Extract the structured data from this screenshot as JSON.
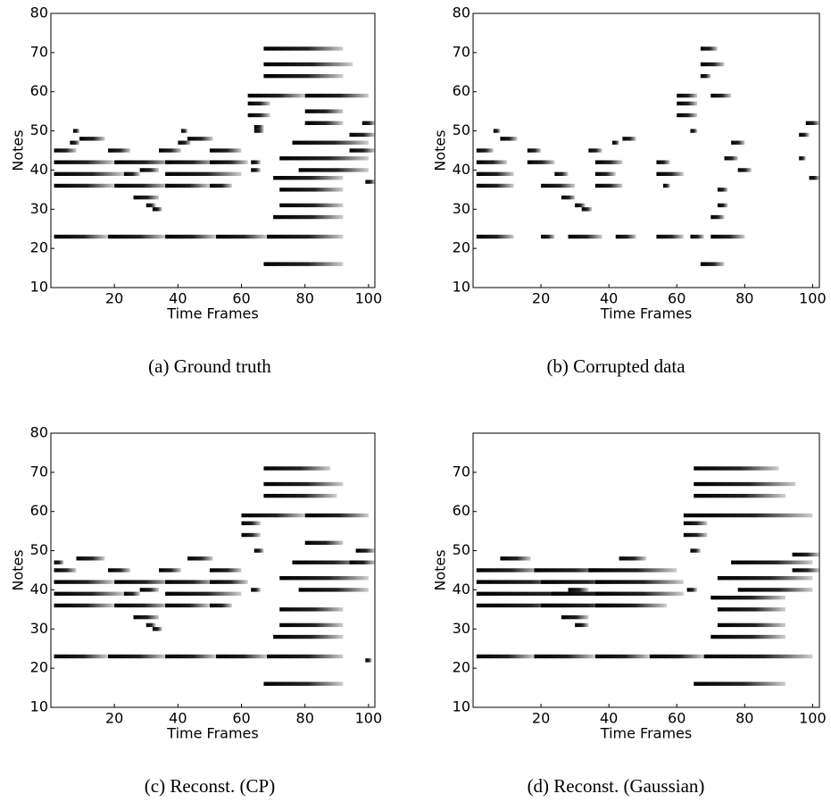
{
  "chart_data": [
    {
      "type": "heatmap",
      "caption": "(a) Ground truth",
      "x_label": "Time Frames",
      "y_label": "Notes",
      "xlim": [
        0,
        102
      ],
      "ylim": [
        10,
        80
      ],
      "xticks": [
        20,
        40,
        60,
        80,
        100
      ],
      "yticks": [
        10,
        20,
        30,
        40,
        50,
        60,
        70,
        80
      ],
      "segments": [
        [
          23,
          1,
          18
        ],
        [
          23,
          18,
          36
        ],
        [
          23,
          36,
          52
        ],
        [
          23,
          52,
          68
        ],
        [
          23,
          68,
          92
        ],
        [
          45,
          1,
          8
        ],
        [
          42,
          1,
          20
        ],
        [
          39,
          1,
          23
        ],
        [
          36,
          1,
          20
        ],
        [
          47,
          6,
          9
        ],
        [
          50,
          7,
          9
        ],
        [
          48,
          9,
          17
        ],
        [
          45,
          18,
          25
        ],
        [
          42,
          20,
          38
        ],
        [
          39,
          23,
          28
        ],
        [
          36,
          20,
          37
        ],
        [
          40,
          28,
          34
        ],
        [
          33,
          26,
          34
        ],
        [
          31,
          30,
          33
        ],
        [
          30,
          32,
          35
        ],
        [
          45,
          34,
          41
        ],
        [
          42,
          36,
          52
        ],
        [
          39,
          36,
          60
        ],
        [
          36,
          36,
          50
        ],
        [
          47,
          40,
          44
        ],
        [
          50,
          41,
          43
        ],
        [
          48,
          43,
          51
        ],
        [
          45,
          50,
          60
        ],
        [
          42,
          50,
          62
        ],
        [
          36,
          50,
          57
        ],
        [
          40,
          63,
          66
        ],
        [
          42,
          63,
          66
        ],
        [
          59,
          62,
          80
        ],
        [
          57,
          62,
          69
        ],
        [
          54,
          62,
          69
        ],
        [
          51,
          64,
          67
        ],
        [
          50,
          64,
          67
        ],
        [
          71,
          67,
          92
        ],
        [
          67,
          67,
          95
        ],
        [
          64,
          67,
          92
        ],
        [
          59,
          80,
          100
        ],
        [
          55,
          80,
          92
        ],
        [
          52,
          80,
          92
        ],
        [
          47,
          76,
          100
        ],
        [
          43,
          72,
          100
        ],
        [
          40,
          78,
          100
        ],
        [
          38,
          70,
          92
        ],
        [
          35,
          72,
          92
        ],
        [
          31,
          72,
          92
        ],
        [
          28,
          70,
          92
        ],
        [
          16,
          67,
          92
        ],
        [
          49,
          94,
          102
        ],
        [
          52,
          98,
          102
        ],
        [
          45,
          94,
          102
        ],
        [
          37,
          99,
          102
        ]
      ]
    },
    {
      "type": "heatmap",
      "caption": "(b) Corrupted data",
      "x_label": "Time Frames",
      "y_label": "Notes",
      "xlim": [
        0,
        102
      ],
      "ylim": [
        10,
        80
      ],
      "xticks": [
        20,
        40,
        60,
        80,
        100
      ],
      "yticks": [
        10,
        20,
        30,
        40,
        50,
        60,
        70,
        80
      ],
      "segments": [
        [
          23,
          1,
          12
        ],
        [
          23,
          20,
          24
        ],
        [
          23,
          28,
          38
        ],
        [
          23,
          42,
          48
        ],
        [
          23,
          54,
          62
        ],
        [
          23,
          64,
          68
        ],
        [
          23,
          70,
          80
        ],
        [
          45,
          1,
          6
        ],
        [
          42,
          1,
          10
        ],
        [
          39,
          1,
          12
        ],
        [
          36,
          1,
          12
        ],
        [
          48,
          8,
          13
        ],
        [
          50,
          6,
          8
        ],
        [
          45,
          16,
          20
        ],
        [
          42,
          16,
          24
        ],
        [
          39,
          24,
          28
        ],
        [
          36,
          20,
          30
        ],
        [
          33,
          26,
          30
        ],
        [
          31,
          30,
          33
        ],
        [
          30,
          32,
          35
        ],
        [
          45,
          34,
          38
        ],
        [
          42,
          36,
          44
        ],
        [
          39,
          36,
          42
        ],
        [
          36,
          36,
          44
        ],
        [
          47,
          41,
          43
        ],
        [
          48,
          44,
          48
        ],
        [
          42,
          54,
          58
        ],
        [
          39,
          54,
          62
        ],
        [
          36,
          56,
          58
        ],
        [
          59,
          60,
          66
        ],
        [
          57,
          60,
          66
        ],
        [
          54,
          60,
          66
        ],
        [
          50,
          64,
          66
        ],
        [
          71,
          67,
          72
        ],
        [
          67,
          67,
          74
        ],
        [
          64,
          67,
          70
        ],
        [
          59,
          70,
          76
        ],
        [
          47,
          76,
          80
        ],
        [
          43,
          74,
          78
        ],
        [
          40,
          78,
          82
        ],
        [
          35,
          72,
          75
        ],
        [
          31,
          72,
          75
        ],
        [
          28,
          70,
          74
        ],
        [
          16,
          67,
          74
        ],
        [
          49,
          96,
          99
        ],
        [
          52,
          98,
          102
        ],
        [
          43,
          96,
          98
        ],
        [
          38,
          99,
          102
        ]
      ]
    },
    {
      "type": "heatmap",
      "caption": "(c) Reconst. (CP)",
      "x_label": "Time Frames",
      "y_label": "Notes",
      "xlim": [
        0,
        102
      ],
      "ylim": [
        10,
        80
      ],
      "xticks": [
        20,
        40,
        60,
        80,
        100
      ],
      "yticks": [
        10,
        20,
        30,
        40,
        50,
        60,
        70,
        80
      ],
      "segments": [
        [
          23,
          1,
          18
        ],
        [
          23,
          18,
          36
        ],
        [
          23,
          36,
          52
        ],
        [
          23,
          52,
          68
        ],
        [
          23,
          68,
          92
        ],
        [
          47,
          1,
          4
        ],
        [
          45,
          1,
          8
        ],
        [
          42,
          1,
          20
        ],
        [
          39,
          1,
          23
        ],
        [
          36,
          1,
          20
        ],
        [
          48,
          8,
          17
        ],
        [
          45,
          18,
          25
        ],
        [
          42,
          20,
          38
        ],
        [
          39,
          23,
          28
        ],
        [
          36,
          20,
          37
        ],
        [
          40,
          28,
          34
        ],
        [
          33,
          26,
          34
        ],
        [
          31,
          30,
          33
        ],
        [
          30,
          32,
          35
        ],
        [
          45,
          34,
          41
        ],
        [
          42,
          36,
          52
        ],
        [
          39,
          36,
          60
        ],
        [
          36,
          36,
          50
        ],
        [
          48,
          43,
          51
        ],
        [
          45,
          50,
          60
        ],
        [
          42,
          50,
          62
        ],
        [
          36,
          50,
          57
        ],
        [
          40,
          63,
          66
        ],
        [
          59,
          60,
          80
        ],
        [
          57,
          60,
          66
        ],
        [
          54,
          60,
          66
        ],
        [
          50,
          64,
          67
        ],
        [
          71,
          67,
          88
        ],
        [
          67,
          67,
          92
        ],
        [
          64,
          67,
          90
        ],
        [
          59,
          80,
          100
        ],
        [
          52,
          80,
          92
        ],
        [
          47,
          76,
          100
        ],
        [
          43,
          72,
          100
        ],
        [
          40,
          78,
          100
        ],
        [
          35,
          72,
          92
        ],
        [
          31,
          72,
          92
        ],
        [
          28,
          70,
          92
        ],
        [
          16,
          67,
          92
        ],
        [
          47,
          94,
          102
        ],
        [
          50,
          96,
          102
        ],
        [
          22,
          99,
          101
        ]
      ]
    },
    {
      "type": "heatmap",
      "caption": "(d) Reconst. (Gaussian)",
      "x_label": "Time Frames",
      "y_label": "Notes",
      "xlim": [
        0,
        102
      ],
      "ylim": [
        10,
        80
      ],
      "xticks": [
        20,
        40,
        60,
        80,
        100
      ],
      "yticks": [
        10,
        20,
        30,
        40,
        50,
        60,
        70
      ],
      "segments": [
        [
          23,
          1,
          18
        ],
        [
          23,
          18,
          36
        ],
        [
          23,
          36,
          52
        ],
        [
          23,
          52,
          68
        ],
        [
          23,
          68,
          100
        ],
        [
          45,
          1,
          20
        ],
        [
          42,
          1,
          30
        ],
        [
          39,
          1,
          40
        ],
        [
          36,
          1,
          30
        ],
        [
          48,
          8,
          17
        ],
        [
          45,
          18,
          40
        ],
        [
          42,
          20,
          45
        ],
        [
          39,
          23,
          50
        ],
        [
          36,
          20,
          45
        ],
        [
          40,
          28,
          34
        ],
        [
          33,
          26,
          34
        ],
        [
          31,
          30,
          34
        ],
        [
          45,
          34,
          60
        ],
        [
          42,
          36,
          62
        ],
        [
          39,
          36,
          62
        ],
        [
          36,
          36,
          57
        ],
        [
          48,
          43,
          51
        ],
        [
          40,
          63,
          66
        ],
        [
          59,
          62,
          100
        ],
        [
          57,
          62,
          69
        ],
        [
          54,
          62,
          69
        ],
        [
          50,
          64,
          67
        ],
        [
          71,
          65,
          90
        ],
        [
          67,
          65,
          95
        ],
        [
          64,
          65,
          92
        ],
        [
          47,
          76,
          100
        ],
        [
          43,
          72,
          100
        ],
        [
          40,
          78,
          100
        ],
        [
          38,
          70,
          92
        ],
        [
          35,
          72,
          92
        ],
        [
          31,
          72,
          92
        ],
        [
          28,
          70,
          92
        ],
        [
          16,
          65,
          92
        ],
        [
          49,
          94,
          102
        ],
        [
          45,
          94,
          102
        ]
      ]
    }
  ]
}
